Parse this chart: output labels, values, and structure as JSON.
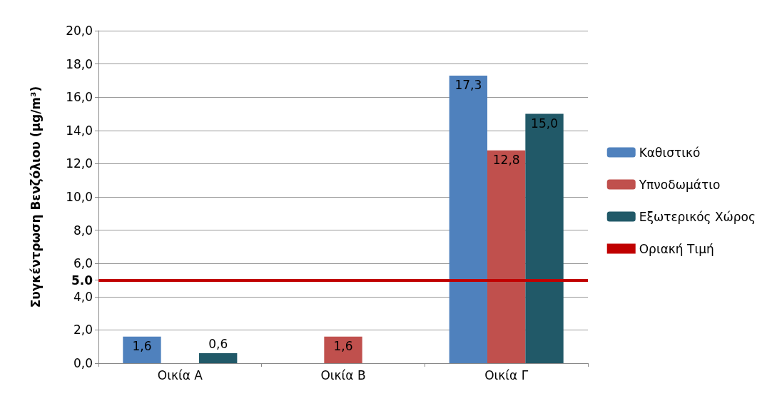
{
  "chart_data": {
    "type": "bar",
    "ylabel": "Συγκέντρωση Βενζόλιου (μg/m³)",
    "categories": [
      "Οικία Α",
      "Οικία Β",
      "Οικία Γ"
    ],
    "series": [
      {
        "name": "Καθιστικό",
        "color": "#4f81bd",
        "values": [
          1.6,
          null,
          17.3
        ],
        "value_labels": [
          "1,6",
          null,
          "17,3"
        ]
      },
      {
        "name": "Υπνοδωμάτιο",
        "color": "#c0504d",
        "values": [
          null,
          1.6,
          12.8
        ],
        "value_labels": [
          null,
          "1,6",
          "12,8"
        ]
      },
      {
        "name": "Εξωτερικός Χώρος",
        "color": "#215968",
        "values": [
          0.6,
          null,
          15.0
        ],
        "value_labels": [
          "0,6",
          null,
          "15,0"
        ]
      }
    ],
    "ref_lines": [
      {
        "axis": "y",
        "value": 5.0,
        "label": "Οριακή Τιμή",
        "color": "#c00000",
        "line_style": "solid"
      }
    ],
    "ylim": [
      0,
      20
    ],
    "yticks": [
      {
        "value": 0,
        "label": "0,0"
      },
      {
        "value": 2,
        "label": "2,0"
      },
      {
        "value": 4,
        "label": "4,0"
      },
      {
        "value": 5,
        "label": "5.0"
      },
      {
        "value": 6,
        "label": "6,0"
      },
      {
        "value": 8,
        "label": "8,0"
      },
      {
        "value": 10,
        "label": "10,0"
      },
      {
        "value": 12,
        "label": "12,0"
      },
      {
        "value": 14,
        "label": "14,0"
      },
      {
        "value": 16,
        "label": "16,0"
      },
      {
        "value": 18,
        "label": "18,0"
      },
      {
        "value": 20,
        "label": "20,0"
      }
    ],
    "grid": "y",
    "legend": "right"
  }
}
